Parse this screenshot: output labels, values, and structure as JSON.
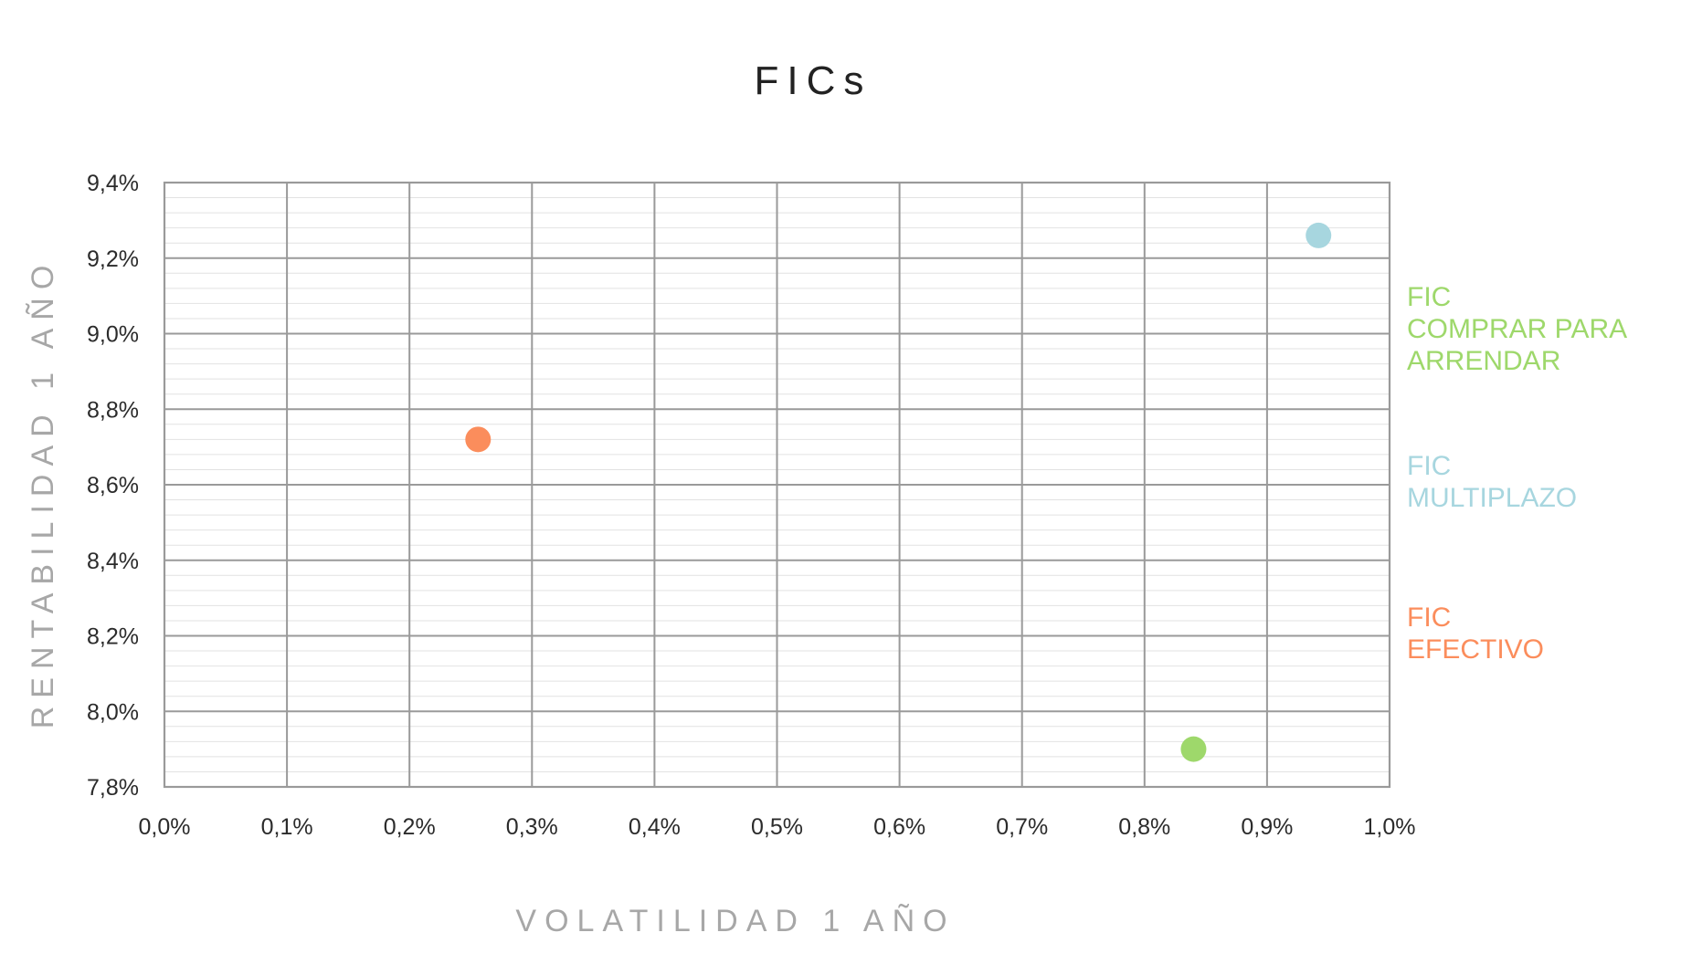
{
  "chart_data": {
    "type": "scatter",
    "title": "FICs",
    "xlabel": "VOLATILIDAD 1 AÑO",
    "ylabel": "RENTABILIDAD 1 AÑO",
    "xlim": [
      0.0,
      1.0
    ],
    "ylim": [
      7.8,
      9.4
    ],
    "x_ticks": [
      "0,0%",
      "0,1%",
      "0,2%",
      "0,3%",
      "0,4%",
      "0,5%",
      "0,6%",
      "0,7%",
      "0,8%",
      "0,9%",
      "1,0%"
    ],
    "y_ticks": [
      "7,8%",
      "8,0%",
      "8,2%",
      "8,4%",
      "8,6%",
      "8,8%",
      "9,0%",
      "9,2%",
      "9,4%"
    ],
    "grid": true,
    "legend_placement": "right",
    "series": [
      {
        "name_lines": [
          "FIC",
          "COMPRAR PARA",
          "ARRENDAR"
        ],
        "color": "#9ed86b",
        "points": [
          {
            "x": 0.84,
            "y": 7.9
          }
        ]
      },
      {
        "name_lines": [
          "FIC",
          "MULTIPLAZO"
        ],
        "color": "#a7d6df",
        "points": [
          {
            "x": 0.942,
            "y": 9.26
          }
        ]
      },
      {
        "name_lines": [
          "FIC",
          "EFECTIVO"
        ],
        "color": "#fb8d5c",
        "points": [
          {
            "x": 0.256,
            "y": 8.72
          }
        ]
      }
    ]
  }
}
